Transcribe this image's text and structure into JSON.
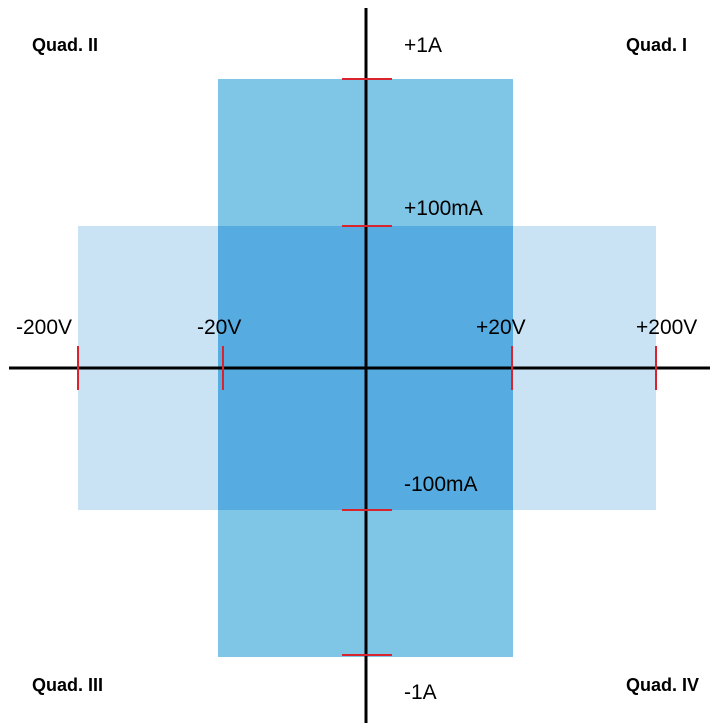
{
  "quadrants": {
    "q1": "Quad. I",
    "q2": "Quad. II",
    "q3": "Quad. III",
    "q4": "Quad. IV"
  },
  "voltage_labels": {
    "neg_200": "-200V",
    "neg_20": "-20V",
    "pos_20": "+20V",
    "pos_200": "+200V"
  },
  "current_labels": {
    "pos_1a": "+1A",
    "pos_100ma": "+100mA",
    "neg_100ma": "-100mA",
    "neg_1a": "-1A"
  },
  "colors": {
    "axis": "#000000",
    "tick": "#d9232d",
    "wide_region": "#c9e3f5",
    "tall_region": "#7fc5e6",
    "overlap_region": "#56ace0"
  }
}
